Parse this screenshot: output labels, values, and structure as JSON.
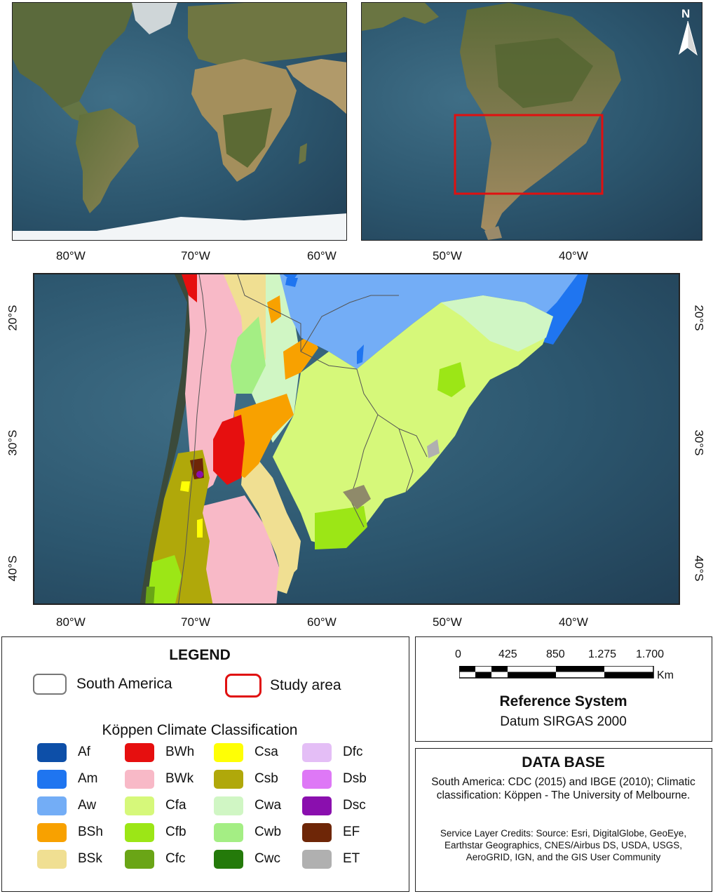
{
  "north_arrow": {
    "label": "N"
  },
  "axes": {
    "top_ticks": [
      "80°W",
      "70°W",
      "60°W",
      "50°W",
      "40°W"
    ],
    "bottom_ticks": [
      "80°W",
      "70°W",
      "60°W",
      "50°W",
      "40°W"
    ],
    "left_ticks": [
      "20°S",
      "30°S",
      "40°S"
    ],
    "right_ticks": [
      "20°S",
      "30°S",
      "40°S"
    ]
  },
  "legend": {
    "title": "LEGEND",
    "south_america": "South America",
    "study_area": "Study area",
    "koppen_title": "Köppen Climate Classification",
    "classes": [
      {
        "code": "Af",
        "color": "#0d4fa8"
      },
      {
        "code": "Am",
        "color": "#1f75f0"
      },
      {
        "code": "Aw",
        "color": "#73adf6"
      },
      {
        "code": "BSh",
        "color": "#f8a100"
      },
      {
        "code": "BSk",
        "color": "#f0df92"
      },
      {
        "code": "BWh",
        "color": "#e60f0f"
      },
      {
        "code": "BWk",
        "color": "#f8b9c7"
      },
      {
        "code": "Cfa",
        "color": "#d6f87a"
      },
      {
        "code": "Cfb",
        "color": "#9ce616"
      },
      {
        "code": "Cfc",
        "color": "#6aa516"
      },
      {
        "code": "Csa",
        "color": "#ffff05"
      },
      {
        "code": "Csb",
        "color": "#b0a80a"
      },
      {
        "code": "Cwa",
        "color": "#d0f6c4"
      },
      {
        "code": "Cwb",
        "color": "#a4ee84"
      },
      {
        "code": "Cwc",
        "color": "#247a0a"
      },
      {
        "code": "Dfc",
        "color": "#e4bef6"
      },
      {
        "code": "Dsb",
        "color": "#de78f6"
      },
      {
        "code": "Dsc",
        "color": "#8a0fae"
      },
      {
        "code": "EF",
        "color": "#6e2607"
      },
      {
        "code": "ET",
        "color": "#b0b0b0"
      }
    ]
  },
  "scale": {
    "labels": [
      "0",
      "425",
      "850",
      "1.275",
      "1.700"
    ],
    "unit": "Km",
    "ref_title": "Reference System",
    "ref_datum": "Datum SIRGAS 2000"
  },
  "database": {
    "title": "DATA BASE",
    "text1": "South America: CDC (2015) and IBGE (2010); Climatic classification: Köppen - The University of Melbourne.",
    "text2": "Service Layer Credits: Source: Esri, DigitalGlobe, GeoEye, Earthstar Geographics, CNES/Airbus DS, USDA, USGS, AeroGRID, IGN, and the GIS User Community"
  },
  "colors": {
    "study_area_frame": "#e01010",
    "ocean": "#2c566e",
    "land_green": "#6f7a3c",
    "land_desert": "#c9a772"
  }
}
